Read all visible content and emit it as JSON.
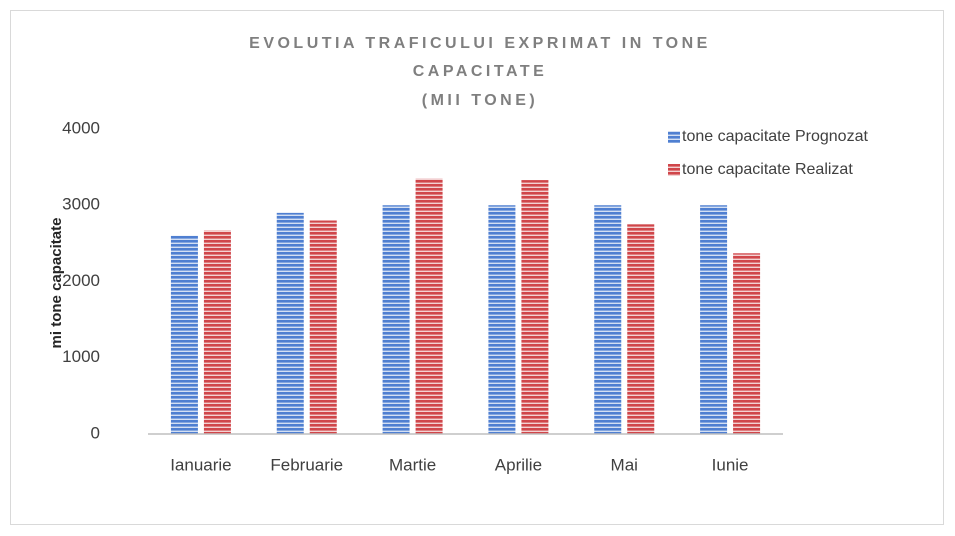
{
  "chart_data": {
    "type": "bar",
    "title": [
      "EVOLUTIA TRAFICULUI EXPRIMAT IN TONE",
      "CAPACITATE"
    ],
    "subtitle": "(MII TONE)",
    "y_label": "mi tone capacitate",
    "categories": [
      "Ianuarie",
      "Februarie",
      "Martie",
      "Aprilie",
      "Mai",
      "Iunie"
    ],
    "series": [
      {
        "name": "tone capacitate Prognozat",
        "color": "#4f7fd1",
        "values": [
          2600,
          2900,
          3000,
          3000,
          3000,
          3000
        ]
      },
      {
        "name": "tone capacitate Realizat",
        "color": "#d0464a",
        "values": [
          2670,
          2800,
          3350,
          3330,
          2750,
          2370
        ]
      }
    ],
    "ylim": [
      0,
      4000
    ],
    "yticks": [
      0,
      1000,
      2000,
      3000,
      4000
    ],
    "grid": false,
    "legend": "top-right"
  }
}
